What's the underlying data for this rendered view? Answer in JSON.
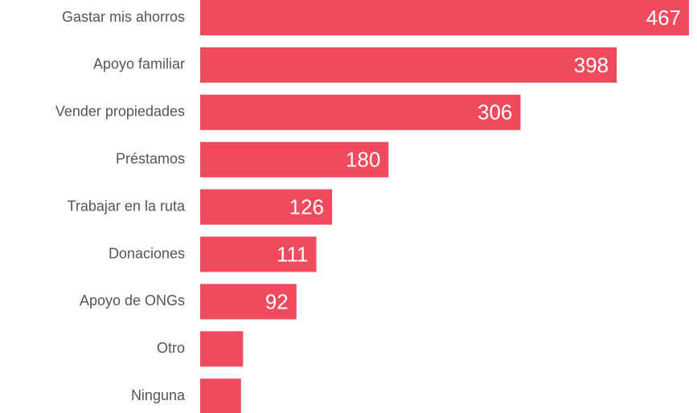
{
  "chart_data": {
    "type": "bar",
    "orientation": "horizontal",
    "categories": [
      "Gastar mis ahorros",
      "Apoyo familiar",
      "Vender propiedades",
      "Préstamos",
      "Trabajar en la ruta",
      "Donaciones",
      "Apoyo de ONGs",
      "Otro",
      "Ninguna"
    ],
    "values": [
      467,
      398,
      306,
      180,
      126,
      111,
      92,
      41,
      39
    ],
    "color": "#f04a5f"
  }
}
